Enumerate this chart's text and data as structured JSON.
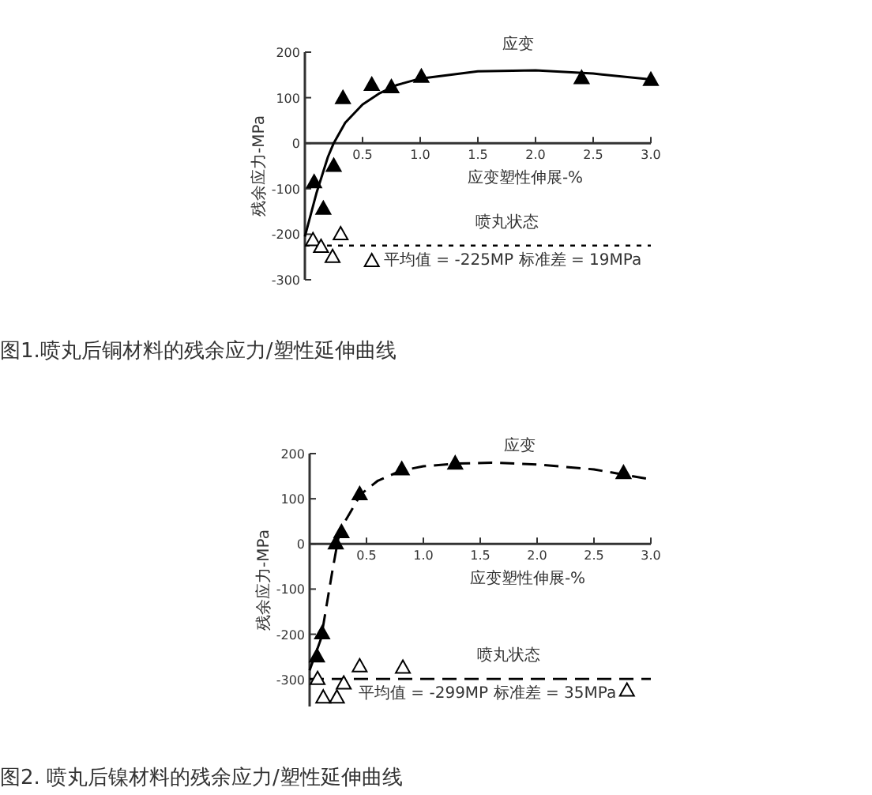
{
  "chart_data": [
    {
      "type": "scatter",
      "title": "图1.喷丸后铜材料的残余应力/塑性延伸曲线",
      "xlabel": "应变塑性伸展-%",
      "ylabel": "残余应力-MPa",
      "annotations": [
        "应变",
        "喷丸状态"
      ],
      "xlim": [
        0,
        3
      ],
      "ylim": [
        -300,
        200
      ],
      "xticks": [
        0.5,
        {
          "value": 1,
          "label": "1.0"
        },
        1.5,
        {
          "value": 2,
          "label": "2.0"
        },
        2.5,
        {
          "value": 3,
          "label": "3.0"
        }
      ],
      "yticks": [
        -300,
        -200,
        -100,
        0,
        100,
        200
      ],
      "grid": false,
      "ref_lines": [
        {
          "axis": "y",
          "value": -225,
          "label": "平均值   =  -225MP   标准差 =  19MPa",
          "line_style": "dotted",
          "color": "#000000"
        }
      ],
      "series": [
        {
          "color": "#000000",
          "marker": "triangle",
          "x": [
            0.08,
            0.16,
            0.25,
            0.33,
            0.58,
            0.75,
            1.01,
            2.4,
            3.0
          ],
          "values": [
            -87,
            -145,
            -51,
            98,
            127,
            122,
            145,
            142,
            138
          ]
        },
        {
          "color": "#ffffff",
          "marker": "triangle",
          "x": [
            0.07,
            0.14,
            0.24,
            0.31,
            0.58
          ],
          "values": [
            -214,
            -229,
            -251,
            -201,
            -260
          ]
        },
        {
          "type": "line",
          "color": "#000000",
          "line_style": "solid",
          "x": [
            0,
            0.1,
            0.2,
            0.25,
            0.35,
            0.5,
            0.65,
            0.8,
            1.0,
            1.5,
            2.0,
            2.5,
            3.0
          ],
          "values": [
            -205,
            -110,
            -30,
            0,
            45,
            85,
            110,
            128,
            142,
            158,
            160,
            153,
            140
          ]
        }
      ]
    },
    {
      "type": "scatter",
      "title": "图2. 喷丸后镍材料的残余应力/塑性延伸曲线",
      "xlabel": "应变塑性伸展-%",
      "ylabel": "残余应力-MPa",
      "annotations": [
        "应变",
        "喷丸状态"
      ],
      "xlim": [
        0,
        3
      ],
      "ylim": [
        -360,
        200
      ],
      "xticks": [
        0.5,
        {
          "value": 1,
          "label": "1.0"
        },
        1.5,
        {
          "value": 2,
          "label": "2.0"
        },
        2.5,
        {
          "value": 3,
          "label": "3.0"
        }
      ],
      "yticks": [
        -300,
        -200,
        -100,
        0,
        100,
        200
      ],
      "grid": false,
      "ref_lines": [
        {
          "axis": "y",
          "value": -299,
          "label": "平均值   =  -299MP   标准差 =  35MPa",
          "line_style": "dashed",
          "color": "#000000"
        }
      ],
      "series": [
        {
          "color": "#000000",
          "marker": "triangle",
          "x": [
            0.065,
            0.11,
            0.23,
            0.28,
            0.44,
            0.81,
            1.28,
            2.76
          ],
          "values": [
            -250,
            -199,
            0,
            25,
            109,
            164,
            177,
            156
          ]
        },
        {
          "color": "#ffffff",
          "marker": "triangle",
          "x": [
            0.07,
            0.12,
            0.24,
            0.3,
            0.44,
            0.82,
            2.79
          ],
          "values": [
            -300,
            -341,
            -341,
            -310,
            -272,
            -275,
            -326
          ]
        },
        {
          "type": "line",
          "color": "#000000",
          "line_style": "dashed",
          "x": [
            0,
            0.1,
            0.2,
            0.25,
            0.3,
            0.45,
            0.6,
            0.8,
            1.0,
            1.3,
            1.6,
            2.0,
            2.5,
            3.0
          ],
          "values": [
            -280,
            -210,
            -60,
            10,
            45,
            110,
            140,
            162,
            172,
            178,
            180,
            176,
            165,
            143
          ]
        }
      ]
    }
  ]
}
